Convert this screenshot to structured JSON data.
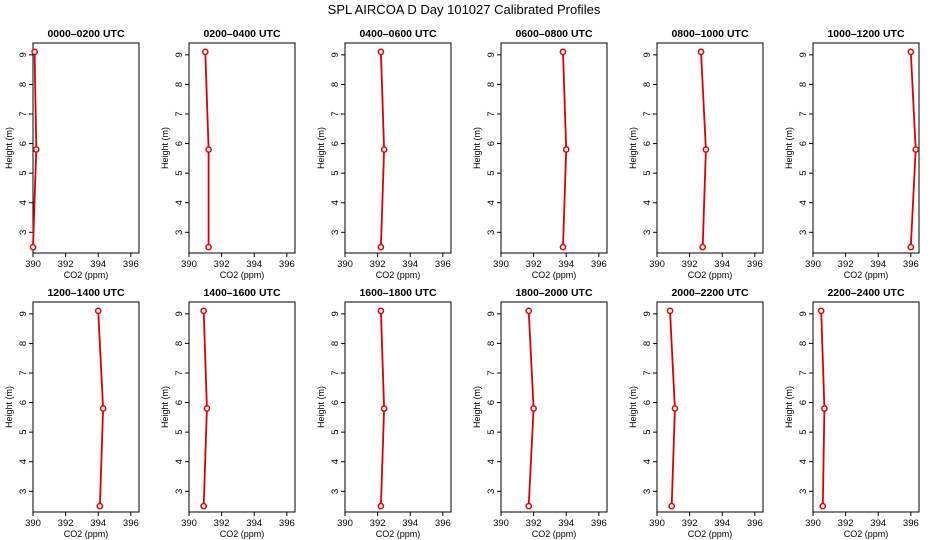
{
  "figure": {
    "title": "SPL AIRCOA D  Day 101027  Calibrated Profiles"
  },
  "style": {
    "line_color": "#dd0000",
    "axis_color": "#000000",
    "background": "#ffffff"
  },
  "chart_data": [
    {
      "type": "line",
      "title": "0000–0200 UTC",
      "xlabel": "CO2 (ppm)",
      "ylabel": "Height (m)",
      "xlim": [
        390,
        396.5
      ],
      "ylim": [
        2.3,
        9.4
      ],
      "xticks": [
        390,
        392,
        394,
        396
      ],
      "yticks": [
        3,
        4,
        5,
        6,
        7,
        8,
        9
      ],
      "grid": false,
      "series": [
        {
          "x": [
            390.0,
            390.2,
            390.1
          ],
          "y": [
            2.5,
            5.8,
            9.1
          ]
        }
      ]
    },
    {
      "type": "line",
      "title": "0200–0400 UTC",
      "xlabel": "CO2 (ppm)",
      "ylabel": "Height (m)",
      "xlim": [
        390,
        396.5
      ],
      "ylim": [
        2.3,
        9.4
      ],
      "xticks": [
        390,
        392,
        394,
        396
      ],
      "yticks": [
        3,
        4,
        5,
        6,
        7,
        8,
        9
      ],
      "grid": false,
      "series": [
        {
          "x": [
            391.2,
            391.2,
            391.0
          ],
          "y": [
            2.5,
            5.8,
            9.1
          ]
        }
      ]
    },
    {
      "type": "line",
      "title": "0400–0600 UTC",
      "xlabel": "CO2 (ppm)",
      "ylabel": "Height (m)",
      "xlim": [
        390,
        396.5
      ],
      "ylim": [
        2.3,
        9.4
      ],
      "xticks": [
        390,
        392,
        394,
        396
      ],
      "yticks": [
        3,
        4,
        5,
        6,
        7,
        8,
        9
      ],
      "grid": false,
      "series": [
        {
          "x": [
            392.2,
            392.4,
            392.2
          ],
          "y": [
            2.5,
            5.8,
            9.1
          ]
        }
      ]
    },
    {
      "type": "line",
      "title": "0600–0800 UTC",
      "xlabel": "CO2 (ppm)",
      "ylabel": "Height (m)",
      "xlim": [
        390,
        396.5
      ],
      "ylim": [
        2.3,
        9.4
      ],
      "xticks": [
        390,
        392,
        394,
        396
      ],
      "yticks": [
        3,
        4,
        5,
        6,
        7,
        8,
        9
      ],
      "grid": false,
      "series": [
        {
          "x": [
            393.8,
            394.0,
            393.8
          ],
          "y": [
            2.5,
            5.8,
            9.1
          ]
        }
      ]
    },
    {
      "type": "line",
      "title": "0800–1000 UTC",
      "xlabel": "CO2 (ppm)",
      "ylabel": "Height (m)",
      "xlim": [
        390,
        396.5
      ],
      "ylim": [
        2.3,
        9.4
      ],
      "xticks": [
        390,
        392,
        394,
        396
      ],
      "yticks": [
        3,
        4,
        5,
        6,
        7,
        8,
        9
      ],
      "grid": false,
      "series": [
        {
          "x": [
            392.8,
            393.0,
            392.7
          ],
          "y": [
            2.5,
            5.8,
            9.1
          ]
        }
      ]
    },
    {
      "type": "line",
      "title": "1000–1200 UTC",
      "xlabel": "CO2 (ppm)",
      "ylabel": "Height (m)",
      "xlim": [
        390,
        396.5
      ],
      "ylim": [
        2.3,
        9.4
      ],
      "xticks": [
        390,
        392,
        394,
        396
      ],
      "yticks": [
        3,
        4,
        5,
        6,
        7,
        8,
        9
      ],
      "grid": false,
      "series": [
        {
          "x": [
            396.0,
            396.3,
            396.0
          ],
          "y": [
            2.5,
            5.8,
            9.1
          ]
        }
      ]
    },
    {
      "type": "line",
      "title": "1200–1400 UTC",
      "xlabel": "CO2 (ppm)",
      "ylabel": "Height (m)",
      "xlim": [
        390,
        396.5
      ],
      "ylim": [
        2.3,
        9.4
      ],
      "xticks": [
        390,
        392,
        394,
        396
      ],
      "yticks": [
        3,
        4,
        5,
        6,
        7,
        8,
        9
      ],
      "grid": false,
      "series": [
        {
          "x": [
            394.1,
            394.3,
            394.0
          ],
          "y": [
            2.5,
            5.8,
            9.1
          ]
        }
      ]
    },
    {
      "type": "line",
      "title": "1400–1600 UTC",
      "xlabel": "CO2 (ppm)",
      "ylabel": "Height (m)",
      "xlim": [
        390,
        396.5
      ],
      "ylim": [
        2.3,
        9.4
      ],
      "xticks": [
        390,
        392,
        394,
        396
      ],
      "yticks": [
        3,
        4,
        5,
        6,
        7,
        8,
        9
      ],
      "grid": false,
      "series": [
        {
          "x": [
            390.9,
            391.1,
            390.9
          ],
          "y": [
            2.5,
            5.8,
            9.1
          ]
        }
      ]
    },
    {
      "type": "line",
      "title": "1600–1800 UTC",
      "xlabel": "CO2 (ppm)",
      "ylabel": "Height (m)",
      "xlim": [
        390,
        396.5
      ],
      "ylim": [
        2.3,
        9.4
      ],
      "xticks": [
        390,
        392,
        394,
        396
      ],
      "yticks": [
        3,
        4,
        5,
        6,
        7,
        8,
        9
      ],
      "grid": false,
      "series": [
        {
          "x": [
            392.2,
            392.4,
            392.2
          ],
          "y": [
            2.5,
            5.8,
            9.1
          ]
        }
      ]
    },
    {
      "type": "line",
      "title": "1800–2000 UTC",
      "xlabel": "CO2 (ppm)",
      "ylabel": "Height (m)",
      "xlim": [
        390,
        396.5
      ],
      "ylim": [
        2.3,
        9.4
      ],
      "xticks": [
        390,
        392,
        394,
        396
      ],
      "yticks": [
        3,
        4,
        5,
        6,
        7,
        8,
        9
      ],
      "grid": false,
      "series": [
        {
          "x": [
            391.7,
            392.0,
            391.7
          ],
          "y": [
            2.5,
            5.8,
            9.1
          ]
        }
      ]
    },
    {
      "type": "line",
      "title": "2000–2200 UTC",
      "xlabel": "CO2 (ppm)",
      "ylabel": "Height (m)",
      "xlim": [
        390,
        396.5
      ],
      "ylim": [
        2.3,
        9.4
      ],
      "xticks": [
        390,
        392,
        394,
        396
      ],
      "yticks": [
        3,
        4,
        5,
        6,
        7,
        8,
        9
      ],
      "grid": false,
      "series": [
        {
          "x": [
            390.9,
            391.1,
            390.8
          ],
          "y": [
            2.5,
            5.8,
            9.1
          ]
        }
      ]
    },
    {
      "type": "line",
      "title": "2200–2400 UTC",
      "xlabel": "CO2 (ppm)",
      "ylabel": "Height (m)",
      "xlim": [
        390,
        396.5
      ],
      "ylim": [
        2.3,
        9.4
      ],
      "xticks": [
        390,
        392,
        394,
        396
      ],
      "yticks": [
        3,
        4,
        5,
        6,
        7,
        8,
        9
      ],
      "grid": false,
      "series": [
        {
          "x": [
            390.6,
            390.7,
            390.5
          ],
          "y": [
            2.5,
            5.8,
            9.1
          ]
        }
      ]
    }
  ]
}
